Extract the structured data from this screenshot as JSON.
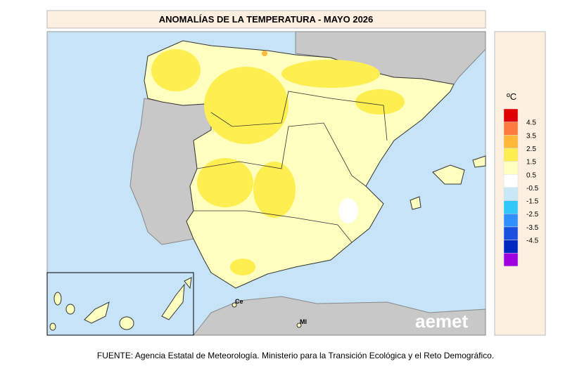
{
  "header": {
    "title": "ANOMALÍAS DE LA TEMPERATURA - MAYO 2026"
  },
  "legend": {
    "unit": "ºC",
    "colors": [
      "#e00000",
      "#ff7a3c",
      "#ffb838",
      "#ffee50",
      "#ffffc0",
      "#ffffff",
      "#c8e8f8",
      "#30c8f8",
      "#3090ff",
      "#1a50e0",
      "#0028c0",
      "#a000e0"
    ],
    "labels": [
      "4.5",
      "3.5",
      "2.5",
      "1.5",
      "0.5",
      "-0.5",
      "-1.5",
      "-2.5",
      "-3.5",
      "-4.5"
    ]
  },
  "map": {
    "cities": [
      "Ce",
      "Ml"
    ],
    "logo": "aemet"
  },
  "footer": {
    "source": "FUENTE: Agencia Estatal de Meteorología. Ministerio para la Transición Ecológica y el Reto Demográfico."
  }
}
